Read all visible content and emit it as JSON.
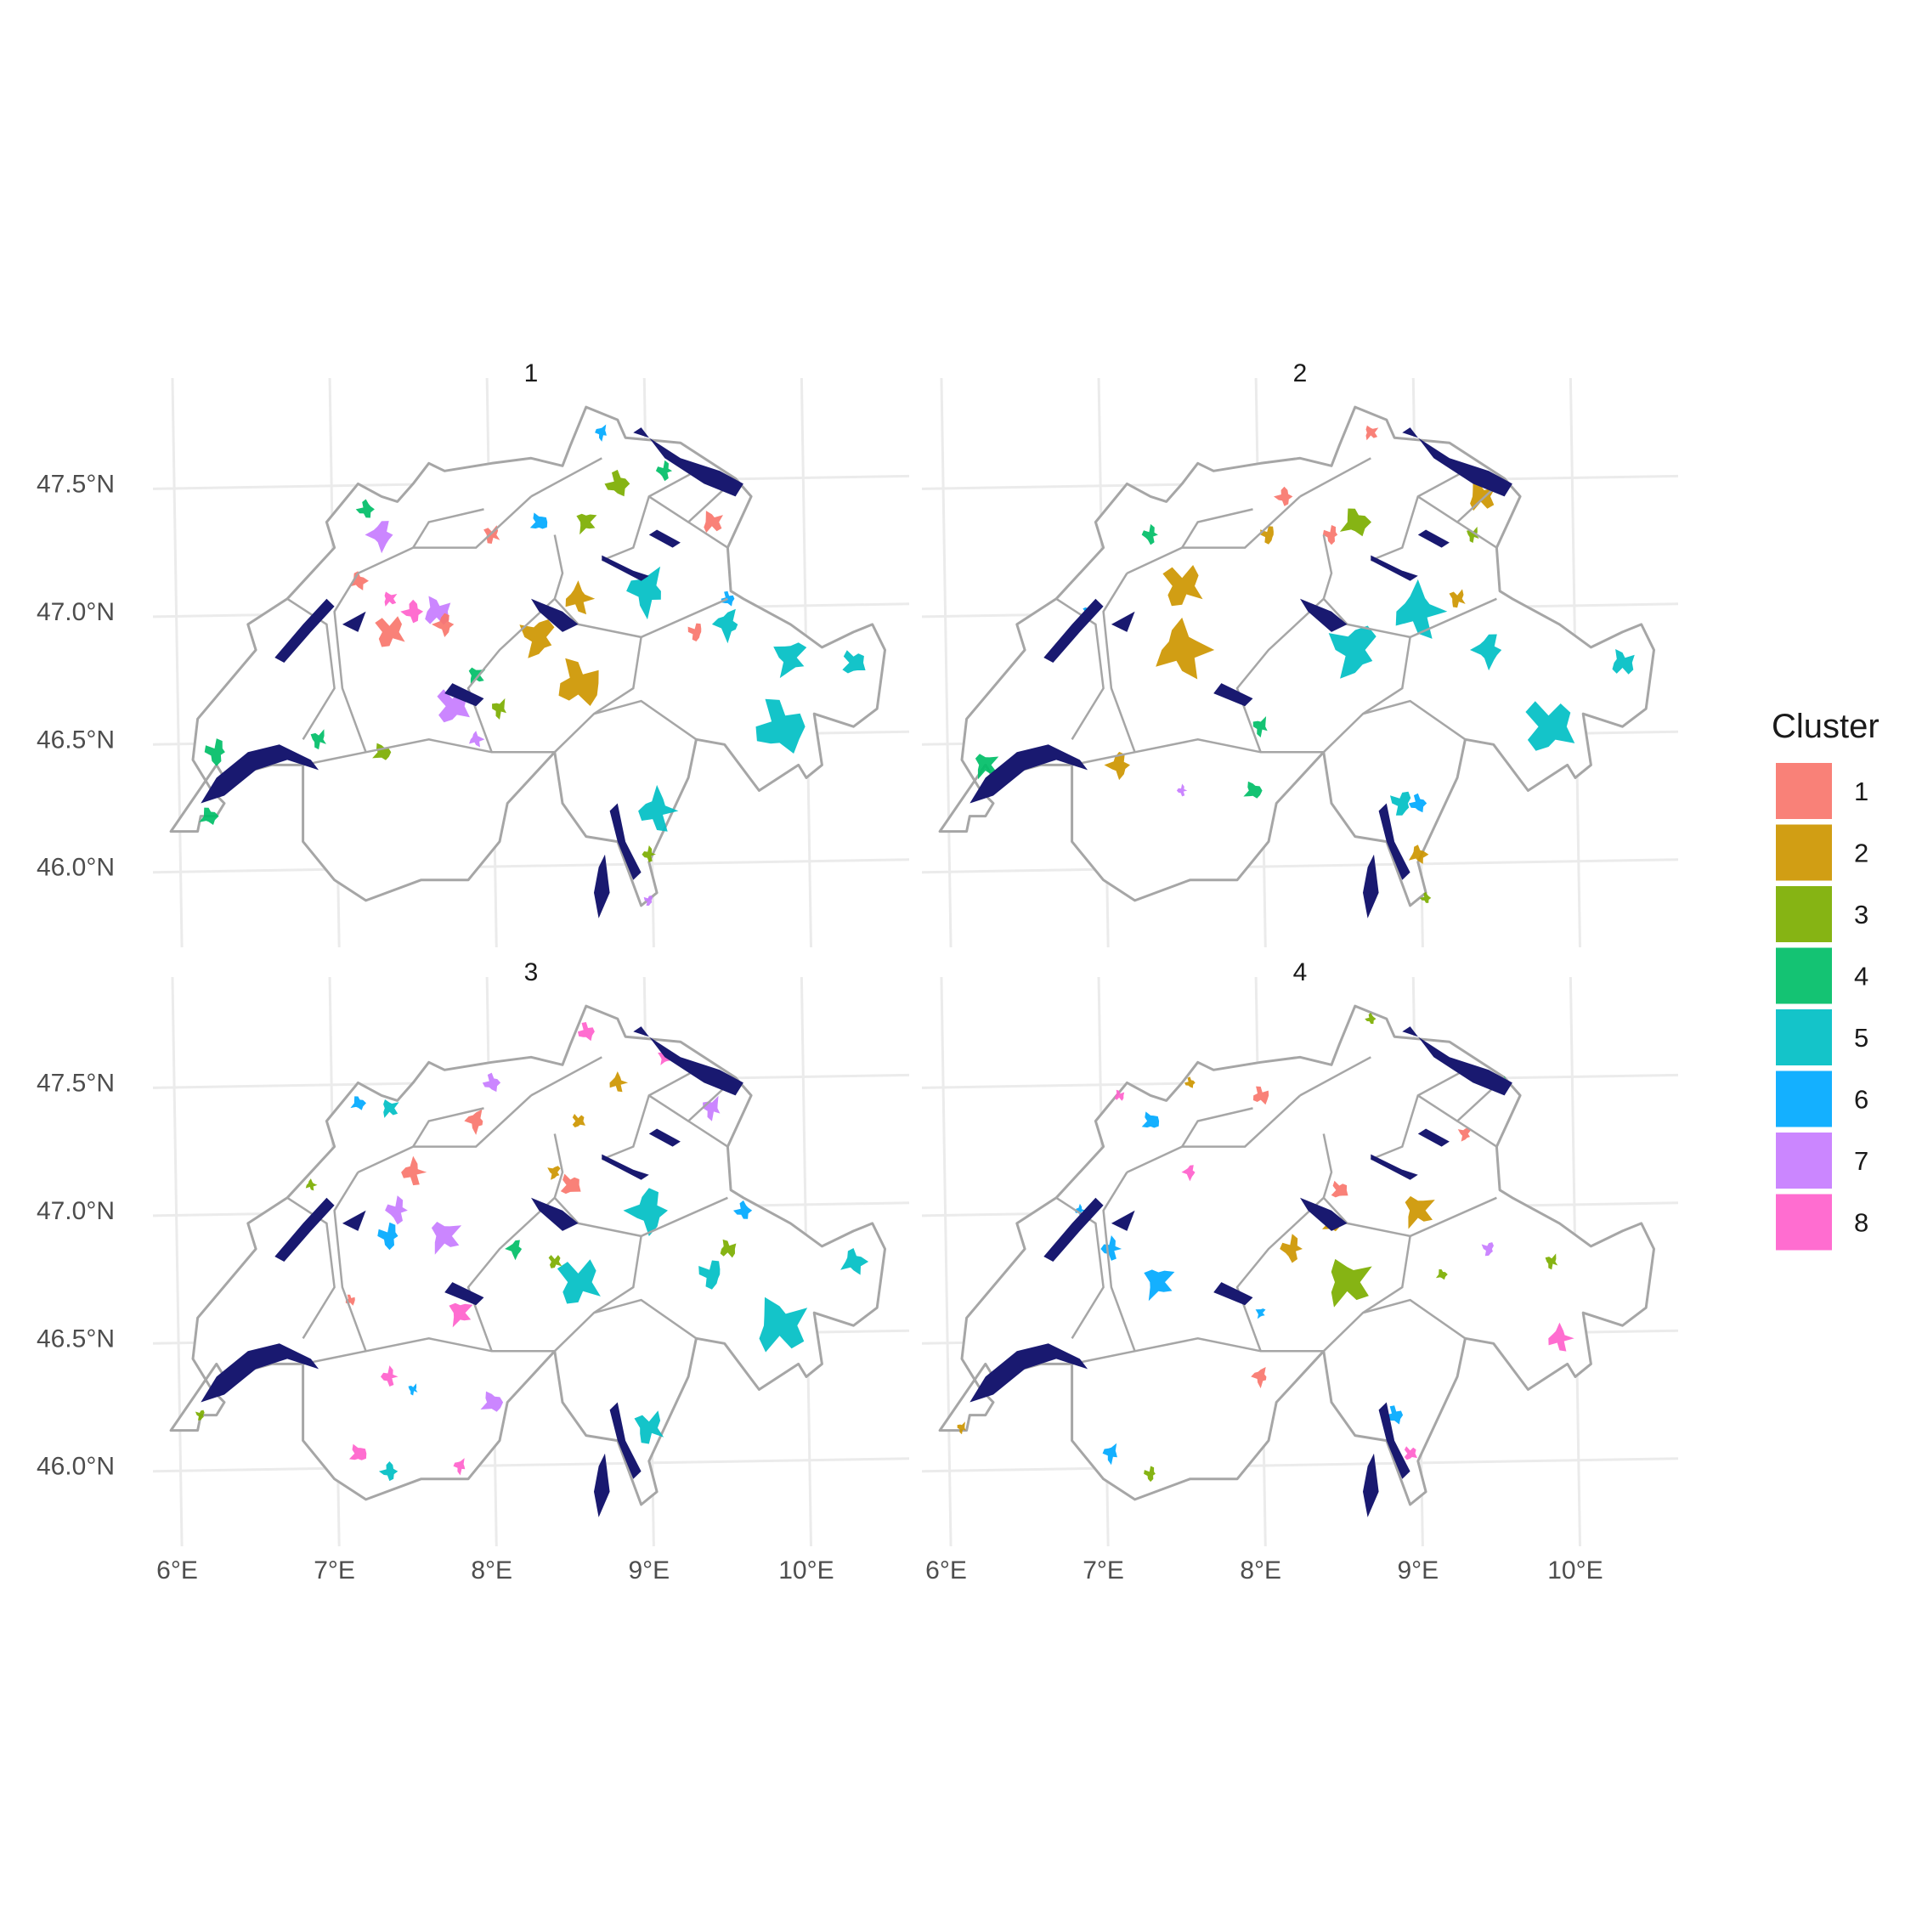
{
  "map_data": {
    "type": "faceted-choropleth",
    "panels": [
      {
        "title": "1",
        "regions": [
          {
            "cluster": 5,
            "lon": 8.99,
            "lat": 47.08,
            "size": 0.12
          },
          {
            "cluster": 5,
            "lon": 9.83,
            "lat": 46.55,
            "size": 0.15
          },
          {
            "cluster": 5,
            "lon": 9.9,
            "lat": 46.82,
            "size": 0.1
          },
          {
            "cluster": 5,
            "lon": 9.05,
            "lat": 46.22,
            "size": 0.11
          },
          {
            "cluster": 5,
            "lon": 10.3,
            "lat": 46.8,
            "size": 0.07
          },
          {
            "cluster": 5,
            "lon": 9.5,
            "lat": 46.95,
            "size": 0.08
          },
          {
            "cluster": 2,
            "lon": 8.55,
            "lat": 46.72,
            "size": 0.13
          },
          {
            "cluster": 2,
            "lon": 8.3,
            "lat": 46.9,
            "size": 0.11
          },
          {
            "cluster": 2,
            "lon": 8.55,
            "lat": 47.05,
            "size": 0.08
          },
          {
            "cluster": 7,
            "lon": 7.75,
            "lat": 46.63,
            "size": 0.1
          },
          {
            "cluster": 7,
            "lon": 7.3,
            "lat": 47.3,
            "size": 0.08
          },
          {
            "cluster": 7,
            "lon": 7.65,
            "lat": 47.0,
            "size": 0.08
          },
          {
            "cluster": 7,
            "lon": 9.0,
            "lat": 45.87,
            "size": 0.03
          },
          {
            "cluster": 7,
            "lon": 7.9,
            "lat": 46.5,
            "size": 0.04
          },
          {
            "cluster": 1,
            "lon": 7.35,
            "lat": 46.92,
            "size": 0.09
          },
          {
            "cluster": 1,
            "lon": 7.7,
            "lat": 46.95,
            "size": 0.06
          },
          {
            "cluster": 1,
            "lon": 9.4,
            "lat": 47.35,
            "size": 0.06
          },
          {
            "cluster": 1,
            "lon": 9.3,
            "lat": 46.92,
            "size": 0.05
          },
          {
            "cluster": 1,
            "lon": 7.15,
            "lat": 47.12,
            "size": 0.05
          },
          {
            "cluster": 1,
            "lon": 8.0,
            "lat": 47.3,
            "size": 0.05
          },
          {
            "cluster": 8,
            "lon": 7.5,
            "lat": 47.0,
            "size": 0.06
          },
          {
            "cluster": 8,
            "lon": 7.35,
            "lat": 47.05,
            "size": 0.04
          },
          {
            "cluster": 4,
            "lon": 6.25,
            "lat": 46.45,
            "size": 0.07
          },
          {
            "cluster": 4,
            "lon": 6.2,
            "lat": 46.2,
            "size": 0.05
          },
          {
            "cluster": 4,
            "lon": 6.9,
            "lat": 46.5,
            "size": 0.05
          },
          {
            "cluster": 4,
            "lon": 7.2,
            "lat": 47.4,
            "size": 0.05
          },
          {
            "cluster": 4,
            "lon": 7.9,
            "lat": 46.75,
            "size": 0.05
          },
          {
            "cluster": 4,
            "lon": 9.1,
            "lat": 47.55,
            "size": 0.05
          },
          {
            "cluster": 3,
            "lon": 7.3,
            "lat": 46.45,
            "size": 0.05
          },
          {
            "cluster": 3,
            "lon": 8.05,
            "lat": 46.62,
            "size": 0.05
          },
          {
            "cluster": 3,
            "lon": 8.8,
            "lat": 47.5,
            "size": 0.07
          },
          {
            "cluster": 3,
            "lon": 8.6,
            "lat": 47.35,
            "size": 0.06
          },
          {
            "cluster": 3,
            "lon": 9.0,
            "lat": 46.05,
            "size": 0.04
          },
          {
            "cluster": 6,
            "lon": 8.3,
            "lat": 47.35,
            "size": 0.05
          },
          {
            "cluster": 6,
            "lon": 8.7,
            "lat": 47.7,
            "size": 0.04
          },
          {
            "cluster": 6,
            "lon": 9.5,
            "lat": 47.05,
            "size": 0.04
          }
        ]
      },
      {
        "title": "2",
        "regions": [
          {
            "cluster": 5,
            "lon": 8.6,
            "lat": 46.85,
            "size": 0.15
          },
          {
            "cluster": 5,
            "lon": 9.0,
            "lat": 47.0,
            "size": 0.14
          },
          {
            "cluster": 5,
            "lon": 9.83,
            "lat": 46.55,
            "size": 0.15
          },
          {
            "cluster": 5,
            "lon": 9.45,
            "lat": 46.85,
            "size": 0.09
          },
          {
            "cluster": 5,
            "lon": 10.3,
            "lat": 46.8,
            "size": 0.07
          },
          {
            "cluster": 5,
            "lon": 8.9,
            "lat": 46.25,
            "size": 0.07
          },
          {
            "cluster": 2,
            "lon": 7.5,
            "lat": 46.85,
            "size": 0.15
          },
          {
            "cluster": 2,
            "lon": 7.5,
            "lat": 47.1,
            "size": 0.12
          },
          {
            "cluster": 2,
            "lon": 7.1,
            "lat": 46.4,
            "size": 0.07
          },
          {
            "cluster": 2,
            "lon": 9.4,
            "lat": 47.45,
            "size": 0.08
          },
          {
            "cluster": 2,
            "lon": 8.05,
            "lat": 47.3,
            "size": 0.05
          },
          {
            "cluster": 2,
            "lon": 9.0,
            "lat": 46.05,
            "size": 0.05
          },
          {
            "cluster": 2,
            "lon": 9.25,
            "lat": 47.05,
            "size": 0.05
          },
          {
            "cluster": 1,
            "lon": 8.15,
            "lat": 47.45,
            "size": 0.05
          },
          {
            "cluster": 1,
            "lon": 8.7,
            "lat": 47.7,
            "size": 0.04
          },
          {
            "cluster": 1,
            "lon": 8.45,
            "lat": 47.3,
            "size": 0.05
          },
          {
            "cluster": 3,
            "lon": 8.6,
            "lat": 47.35,
            "size": 0.08
          },
          {
            "cluster": 3,
            "lon": 9.35,
            "lat": 47.3,
            "size": 0.04
          },
          {
            "cluster": 3,
            "lon": 9.05,
            "lat": 45.88,
            "size": 0.03
          },
          {
            "cluster": 4,
            "lon": 6.25,
            "lat": 46.4,
            "size": 0.07
          },
          {
            "cluster": 4,
            "lon": 7.3,
            "lat": 47.3,
            "size": 0.05
          },
          {
            "cluster": 4,
            "lon": 7.95,
            "lat": 46.3,
            "size": 0.05
          },
          {
            "cluster": 4,
            "lon": 8.0,
            "lat": 46.55,
            "size": 0.05
          },
          {
            "cluster": 6,
            "lon": 9.0,
            "lat": 46.25,
            "size": 0.05
          },
          {
            "cluster": 6,
            "lon": 6.9,
            "lat": 47.0,
            "size": 0.03
          },
          {
            "cluster": 7,
            "lon": 7.5,
            "lat": 46.3,
            "size": 0.03
          }
        ]
      },
      {
        "title": "3",
        "regions": [
          {
            "cluster": 5,
            "lon": 8.55,
            "lat": 46.72,
            "size": 0.13
          },
          {
            "cluster": 5,
            "lon": 9.0,
            "lat": 47.0,
            "size": 0.12
          },
          {
            "cluster": 5,
            "lon": 9.83,
            "lat": 46.55,
            "size": 0.15
          },
          {
            "cluster": 5,
            "lon": 9.4,
            "lat": 46.75,
            "size": 0.08
          },
          {
            "cluster": 5,
            "lon": 10.3,
            "lat": 46.8,
            "size": 0.07
          },
          {
            "cluster": 5,
            "lon": 9.0,
            "lat": 46.15,
            "size": 0.09
          },
          {
            "cluster": 5,
            "lon": 7.35,
            "lat": 45.98,
            "size": 0.05
          },
          {
            "cluster": 5,
            "lon": 7.35,
            "lat": 47.4,
            "size": 0.05
          },
          {
            "cluster": 6,
            "lon": 7.35,
            "lat": 46.9,
            "size": 0.07
          },
          {
            "cluster": 6,
            "lon": 7.15,
            "lat": 47.42,
            "size": 0.04
          },
          {
            "cluster": 6,
            "lon": 7.5,
            "lat": 46.3,
            "size": 0.03
          },
          {
            "cluster": 6,
            "lon": 9.6,
            "lat": 47.0,
            "size": 0.05
          },
          {
            "cluster": 7,
            "lon": 7.7,
            "lat": 46.9,
            "size": 0.09
          },
          {
            "cluster": 7,
            "lon": 7.4,
            "lat": 47.0,
            "size": 0.07
          },
          {
            "cluster": 7,
            "lon": 8.0,
            "lat": 46.25,
            "size": 0.06
          },
          {
            "cluster": 7,
            "lon": 9.4,
            "lat": 47.4,
            "size": 0.06
          },
          {
            "cluster": 7,
            "lon": 8.0,
            "lat": 47.5,
            "size": 0.05
          },
          {
            "cluster": 8,
            "lon": 7.8,
            "lat": 46.6,
            "size": 0.07
          },
          {
            "cluster": 8,
            "lon": 7.35,
            "lat": 46.35,
            "size": 0.05
          },
          {
            "cluster": 8,
            "lon": 7.15,
            "lat": 46.05,
            "size": 0.05
          },
          {
            "cluster": 8,
            "lon": 7.8,
            "lat": 46.0,
            "size": 0.04
          },
          {
            "cluster": 8,
            "lon": 8.6,
            "lat": 47.7,
            "size": 0.05
          },
          {
            "cluster": 8,
            "lon": 9.1,
            "lat": 47.6,
            "size": 0.04
          },
          {
            "cluster": 1,
            "lon": 7.5,
            "lat": 47.15,
            "size": 0.07
          },
          {
            "cluster": 1,
            "lon": 8.5,
            "lat": 47.1,
            "size": 0.06
          },
          {
            "cluster": 1,
            "lon": 7.9,
            "lat": 47.35,
            "size": 0.06
          },
          {
            "cluster": 1,
            "lon": 7.1,
            "lat": 46.65,
            "size": 0.03
          },
          {
            "cluster": 2,
            "lon": 8.4,
            "lat": 47.15,
            "size": 0.04
          },
          {
            "cluster": 2,
            "lon": 8.8,
            "lat": 47.5,
            "size": 0.05
          },
          {
            "cluster": 2,
            "lon": 8.55,
            "lat": 47.35,
            "size": 0.04
          },
          {
            "cluster": 4,
            "lon": 8.15,
            "lat": 46.85,
            "size": 0.05
          },
          {
            "cluster": 3,
            "lon": 9.5,
            "lat": 46.85,
            "size": 0.05
          },
          {
            "cluster": 3,
            "lon": 6.15,
            "lat": 46.2,
            "size": 0.03
          },
          {
            "cluster": 3,
            "lon": 6.85,
            "lat": 47.1,
            "size": 0.03
          },
          {
            "cluster": 3,
            "lon": 8.4,
            "lat": 46.8,
            "size": 0.04
          }
        ]
      },
      {
        "title": "4",
        "regions": [
          {
            "cluster": 3,
            "lon": 8.55,
            "lat": 46.72,
            "size": 0.13
          },
          {
            "cluster": 3,
            "lon": 7.3,
            "lat": 45.97,
            "size": 0.04
          },
          {
            "cluster": 3,
            "lon": 9.15,
            "lat": 46.75,
            "size": 0.03
          },
          {
            "cluster": 3,
            "lon": 9.85,
            "lat": 46.8,
            "size": 0.04
          },
          {
            "cluster": 3,
            "lon": 8.7,
            "lat": 47.75,
            "size": 0.03
          },
          {
            "cluster": 2,
            "lon": 9.0,
            "lat": 47.0,
            "size": 0.09
          },
          {
            "cluster": 2,
            "lon": 8.2,
            "lat": 46.85,
            "size": 0.07
          },
          {
            "cluster": 2,
            "lon": 8.45,
            "lat": 46.95,
            "size": 0.05
          },
          {
            "cluster": 2,
            "lon": 6.1,
            "lat": 46.15,
            "size": 0.03
          },
          {
            "cluster": 2,
            "lon": 7.55,
            "lat": 47.5,
            "size": 0.03
          },
          {
            "cluster": 6,
            "lon": 7.35,
            "lat": 46.72,
            "size": 0.09
          },
          {
            "cluster": 6,
            "lon": 7.05,
            "lat": 46.85,
            "size": 0.06
          },
          {
            "cluster": 6,
            "lon": 7.3,
            "lat": 47.35,
            "size": 0.05
          },
          {
            "cluster": 6,
            "lon": 7.05,
            "lat": 46.05,
            "size": 0.05
          },
          {
            "cluster": 6,
            "lon": 8.85,
            "lat": 46.2,
            "size": 0.05
          },
          {
            "cluster": 6,
            "lon": 8.0,
            "lat": 46.6,
            "size": 0.03
          },
          {
            "cluster": 6,
            "lon": 6.85,
            "lat": 47.0,
            "size": 0.03
          },
          {
            "cluster": 1,
            "lon": 8.5,
            "lat": 47.08,
            "size": 0.05
          },
          {
            "cluster": 1,
            "lon": 8.0,
            "lat": 46.35,
            "size": 0.05
          },
          {
            "cluster": 1,
            "lon": 8.0,
            "lat": 47.45,
            "size": 0.05
          },
          {
            "cluster": 1,
            "lon": 9.3,
            "lat": 47.3,
            "size": 0.04
          },
          {
            "cluster": 8,
            "lon": 9.9,
            "lat": 46.5,
            "size": 0.07
          },
          {
            "cluster": 8,
            "lon": 8.95,
            "lat": 46.05,
            "size": 0.04
          },
          {
            "cluster": 8,
            "lon": 7.55,
            "lat": 47.15,
            "size": 0.04
          },
          {
            "cluster": 8,
            "lon": 7.1,
            "lat": 47.45,
            "size": 0.03
          },
          {
            "cluster": 7,
            "lon": 9.45,
            "lat": 46.85,
            "size": 0.04
          },
          {
            "cluster": 4,
            "lon": 9.55,
            "lat": 47.5,
            "size": 0.03
          }
        ]
      }
    ],
    "x_ticks": [
      "6°E",
      "7°E",
      "8°E",
      "9°E",
      "10°E"
    ],
    "y_ticks": [
      "47.5°N",
      "47.0°N",
      "46.5°N",
      "46.0°N"
    ],
    "legend": {
      "title": "Cluster",
      "placement": "right",
      "items": [
        {
          "label": "1",
          "color": "#F8766D"
        },
        {
          "label": "2",
          "color": "#CD9600"
        },
        {
          "label": "3",
          "color": "#7CAE00"
        },
        {
          "label": "4",
          "color": "#00BE67"
        },
        {
          "label": "5",
          "color": "#00BFC4"
        },
        {
          "label": "6",
          "color": "#00A9FF"
        },
        {
          "label": "7",
          "color": "#C77CFF"
        },
        {
          "label": "8",
          "color": "#FF61CC"
        }
      ]
    },
    "colors": {
      "lake": "#191970",
      "border": "#a6a6a6",
      "grid": "#ebebeb"
    },
    "grid": true
  }
}
